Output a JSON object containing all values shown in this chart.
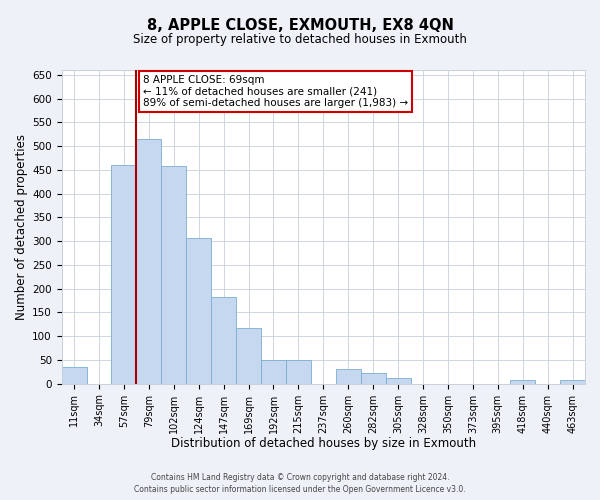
{
  "title": "8, APPLE CLOSE, EXMOUTH, EX8 4QN",
  "subtitle": "Size of property relative to detached houses in Exmouth",
  "xlabel": "Distribution of detached houses by size in Exmouth",
  "ylabel": "Number of detached properties",
  "footer_line1": "Contains HM Land Registry data © Crown copyright and database right 2024.",
  "footer_line2": "Contains public sector information licensed under the Open Government Licence v3.0.",
  "bar_labels": [
    "11sqm",
    "34sqm",
    "57sqm",
    "79sqm",
    "102sqm",
    "124sqm",
    "147sqm",
    "169sqm",
    "192sqm",
    "215sqm",
    "237sqm",
    "260sqm",
    "282sqm",
    "305sqm",
    "328sqm",
    "350sqm",
    "373sqm",
    "395sqm",
    "418sqm",
    "440sqm",
    "463sqm"
  ],
  "bar_values": [
    35,
    0,
    460,
    515,
    458,
    307,
    182,
    118,
    50,
    50,
    0,
    30,
    22,
    13,
    0,
    0,
    0,
    0,
    8,
    0,
    8
  ],
  "bar_color": "#c5d8f0",
  "bar_edge_color": "#7badd4",
  "ylim": [
    0,
    660
  ],
  "yticks": [
    0,
    50,
    100,
    150,
    200,
    250,
    300,
    350,
    400,
    450,
    500,
    550,
    600,
    650
  ],
  "vline_color": "#aa0000",
  "annotation_title": "8 APPLE CLOSE: 69sqm",
  "annotation_line1": "← 11% of detached houses are smaller (241)",
  "annotation_line2": "89% of semi-detached houses are larger (1,983) →",
  "annotation_box_color": "#ffffff",
  "annotation_box_edge": "#cc0000",
  "bg_color": "#eef2f8",
  "plot_bg_color": "#ffffff",
  "grid_color": "#c8d0dc"
}
